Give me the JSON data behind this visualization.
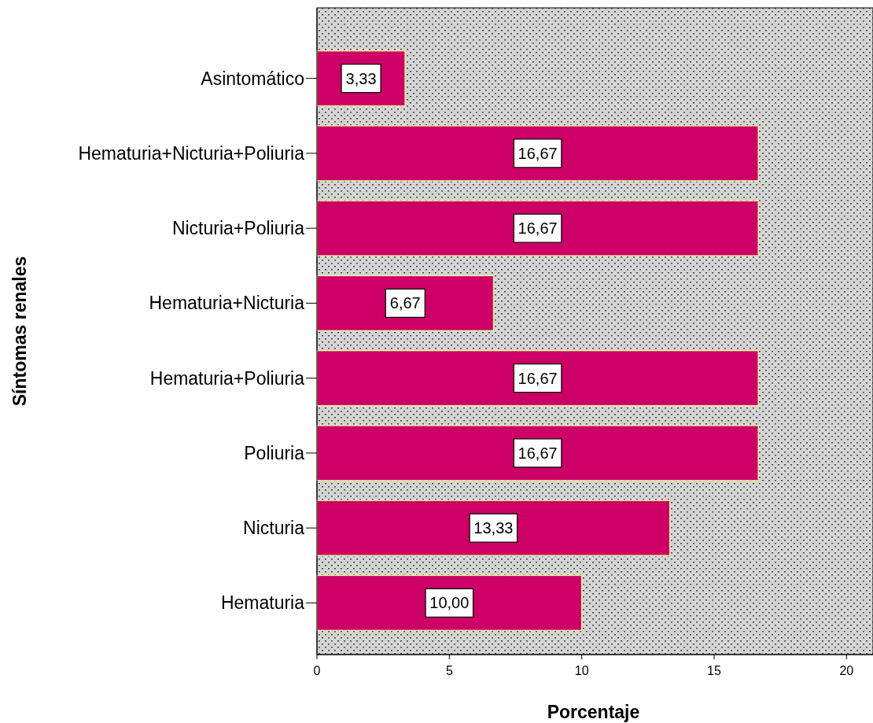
{
  "chart_data": {
    "type": "bar",
    "orientation": "horizontal",
    "xlabel": "Porcentaje",
    "ylabel": "Síntomas renales",
    "categories": [
      "Asintomático",
      "Hematuria+Nicturia+Poliuria",
      "Nicturia+Poliuria",
      "Hematuria+Nicturia",
      "Hematuria+Poliuria",
      "Poliuria",
      "Nicturia",
      "Hematuria"
    ],
    "values": [
      3.33,
      16.67,
      16.67,
      6.67,
      16.67,
      16.67,
      13.33,
      10.0
    ],
    "value_labels": [
      "3,33",
      "16,67",
      "16,67",
      "6,67",
      "16,67",
      "16,67",
      "13,33",
      "10,00"
    ],
    "color": "#cc0066",
    "xlim": [
      0,
      21
    ],
    "xticks": [
      0,
      5,
      10,
      15,
      20
    ]
  }
}
